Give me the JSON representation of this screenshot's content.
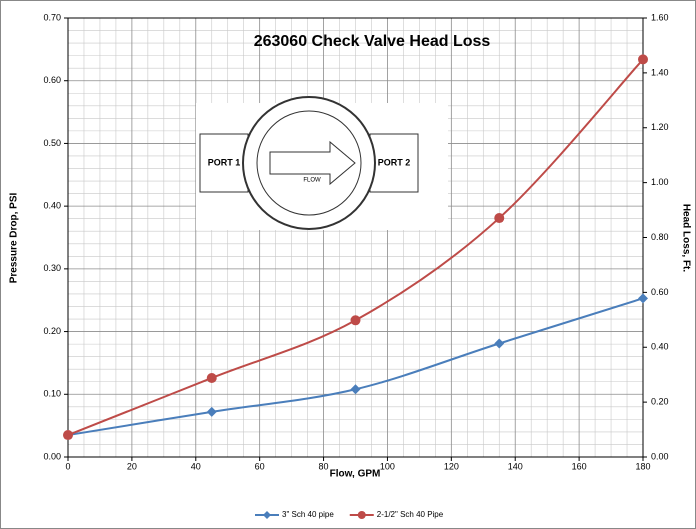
{
  "chart_data": {
    "type": "line",
    "title": "263060 Check Valve Head Loss",
    "x_label": "Flow, GPM",
    "y_label": "Pressure Drop, PSI",
    "y2_label": "Head Loss, Ft.",
    "x": [
      0,
      45,
      90,
      135,
      180
    ],
    "series": [
      {
        "name": "3\" Sch 40 pipe",
        "color": "#4a7ebb",
        "marker": "diamond",
        "values": [
          0.035,
          0.072,
          0.108,
          0.181,
          0.253
        ]
      },
      {
        "name": "2-1/2\" Sch 40 Pipe",
        "color": "#be4b48",
        "marker": "circle",
        "values": [
          0.035,
          0.126,
          0.218,
          0.381,
          0.634
        ]
      }
    ],
    "xlim": [
      0,
      180
    ],
    "xticks": [
      0,
      20,
      40,
      60,
      80,
      100,
      120,
      140,
      160,
      180
    ],
    "ylim": [
      0,
      0.7
    ],
    "yticks": [
      {
        "value": 0,
        "label": "0.00"
      },
      {
        "value": 0.1,
        "label": "0.10"
      },
      {
        "value": 0.2,
        "label": "0.20"
      },
      {
        "value": 0.3,
        "label": "0.30"
      },
      {
        "value": 0.4,
        "label": "0.40"
      },
      {
        "value": 0.5,
        "label": "0.50"
      },
      {
        "value": 0.6,
        "label": "0.60"
      },
      {
        "value": 0.7,
        "label": "0.70"
      }
    ],
    "y2lim": [
      0,
      1.6
    ],
    "y2ticks": [
      {
        "value": 0,
        "label": "0.00"
      },
      {
        "value": 0.2,
        "label": "0.20"
      },
      {
        "value": 0.4,
        "label": "0.40"
      },
      {
        "value": 0.6,
        "label": "0.60"
      },
      {
        "value": 0.8,
        "label": "0.80"
      },
      {
        "value": 1.0,
        "label": "1.00"
      },
      {
        "value": 1.2,
        "label": "1.20"
      },
      {
        "value": 1.4,
        "label": "1.40"
      },
      {
        "value": 1.6,
        "label": "1.60"
      }
    ],
    "grid": true,
    "minor_grid": true,
    "smooth": true,
    "legend": "bottom",
    "annotations": [
      "PORT 1",
      "PORT 2",
      "FLOW"
    ]
  }
}
